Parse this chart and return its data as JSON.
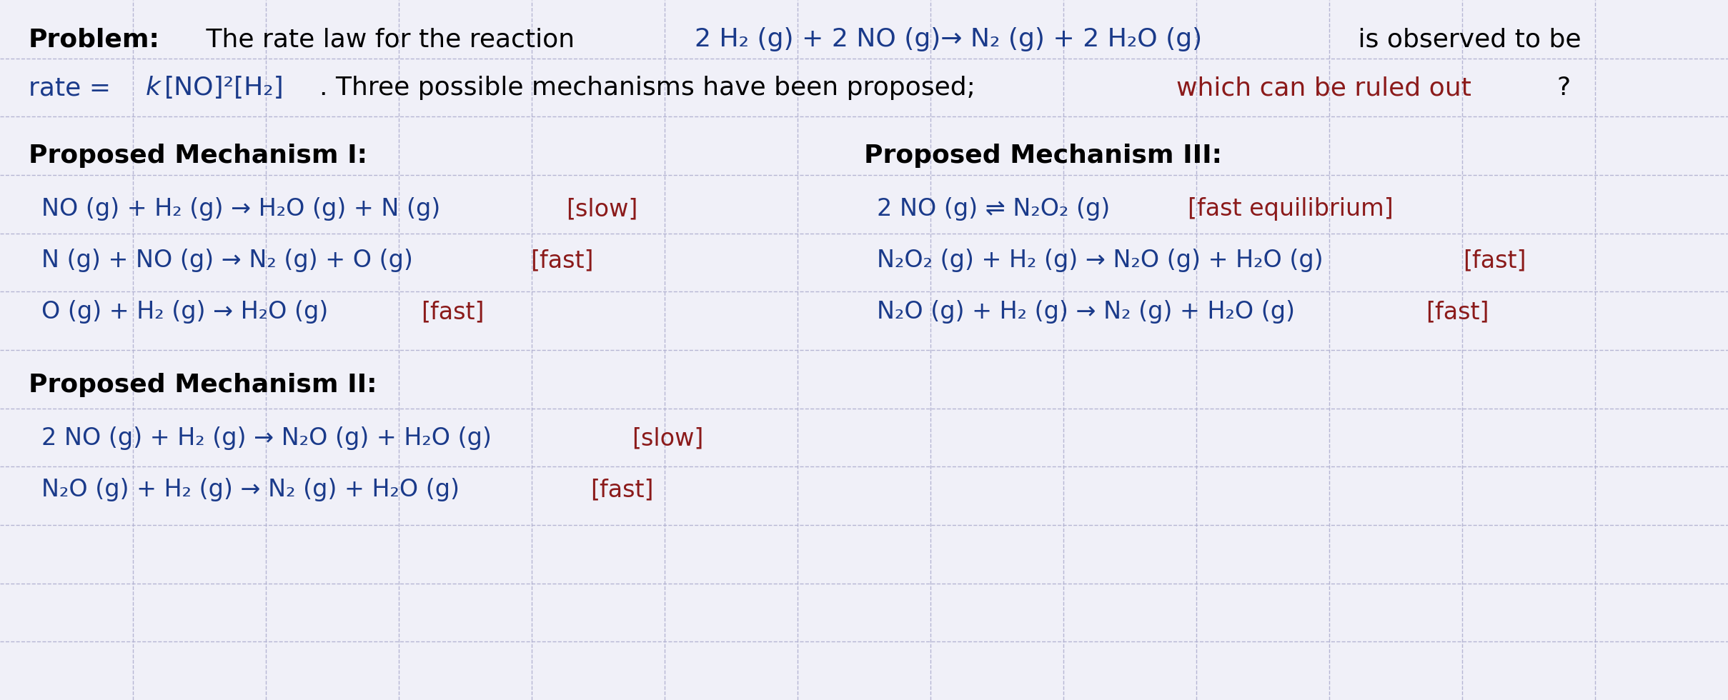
{
  "bg_color": "#f0f0f8",
  "grid_color": "#b0b0d0",
  "black": "#000000",
  "blue": "#1a3a8a",
  "red": "#8b1a1a",
  "fs_header": 26,
  "fs_body": 24,
  "fs_mech_title": 26,
  "mech1_title": "Proposed Mechanism I:",
  "mech1_lines": [
    [
      {
        "text": "NO (g) + H₂ (g) → H₂O (g) + N (g) ",
        "color": "blue"
      },
      {
        "text": "[slow]",
        "color": "red"
      }
    ],
    [
      {
        "text": "N (g) + NO (g) → N₂ (g) + O (g) ",
        "color": "blue"
      },
      {
        "text": "[fast]",
        "color": "red"
      }
    ],
    [
      {
        "text": "O (g) + H₂ (g) → H₂O (g) ",
        "color": "blue"
      },
      {
        "text": "[fast]",
        "color": "red"
      }
    ]
  ],
  "mech2_title": "Proposed Mechanism II:",
  "mech2_lines": [
    [
      {
        "text": "2 NO (g) + H₂ (g) → N₂O (g) + H₂O (g) ",
        "color": "blue"
      },
      {
        "text": "[slow]",
        "color": "red"
      }
    ],
    [
      {
        "text": "N₂O (g) + H₂ (g) → N₂ (g) + H₂O (g) ",
        "color": "blue"
      },
      {
        "text": "[fast]",
        "color": "red"
      }
    ]
  ],
  "mech3_title": "Proposed Mechanism III:",
  "mech3_lines": [
    [
      {
        "text": "2 NO (g) ⇌ N₂O₂ (g) ",
        "color": "blue"
      },
      {
        "text": "[fast equilibrium]",
        "color": "red"
      }
    ],
    [
      {
        "text": "N₂O₂ (g) + H₂ (g) → N₂O (g) + H₂O (g) ",
        "color": "blue"
      },
      {
        "text": "[fast]",
        "color": "red"
      }
    ],
    [
      {
        "text": "N₂O (g) + H₂ (g) → N₂ (g) + H₂O (g) ",
        "color": "blue"
      },
      {
        "text": "[fast]",
        "color": "red"
      }
    ]
  ]
}
